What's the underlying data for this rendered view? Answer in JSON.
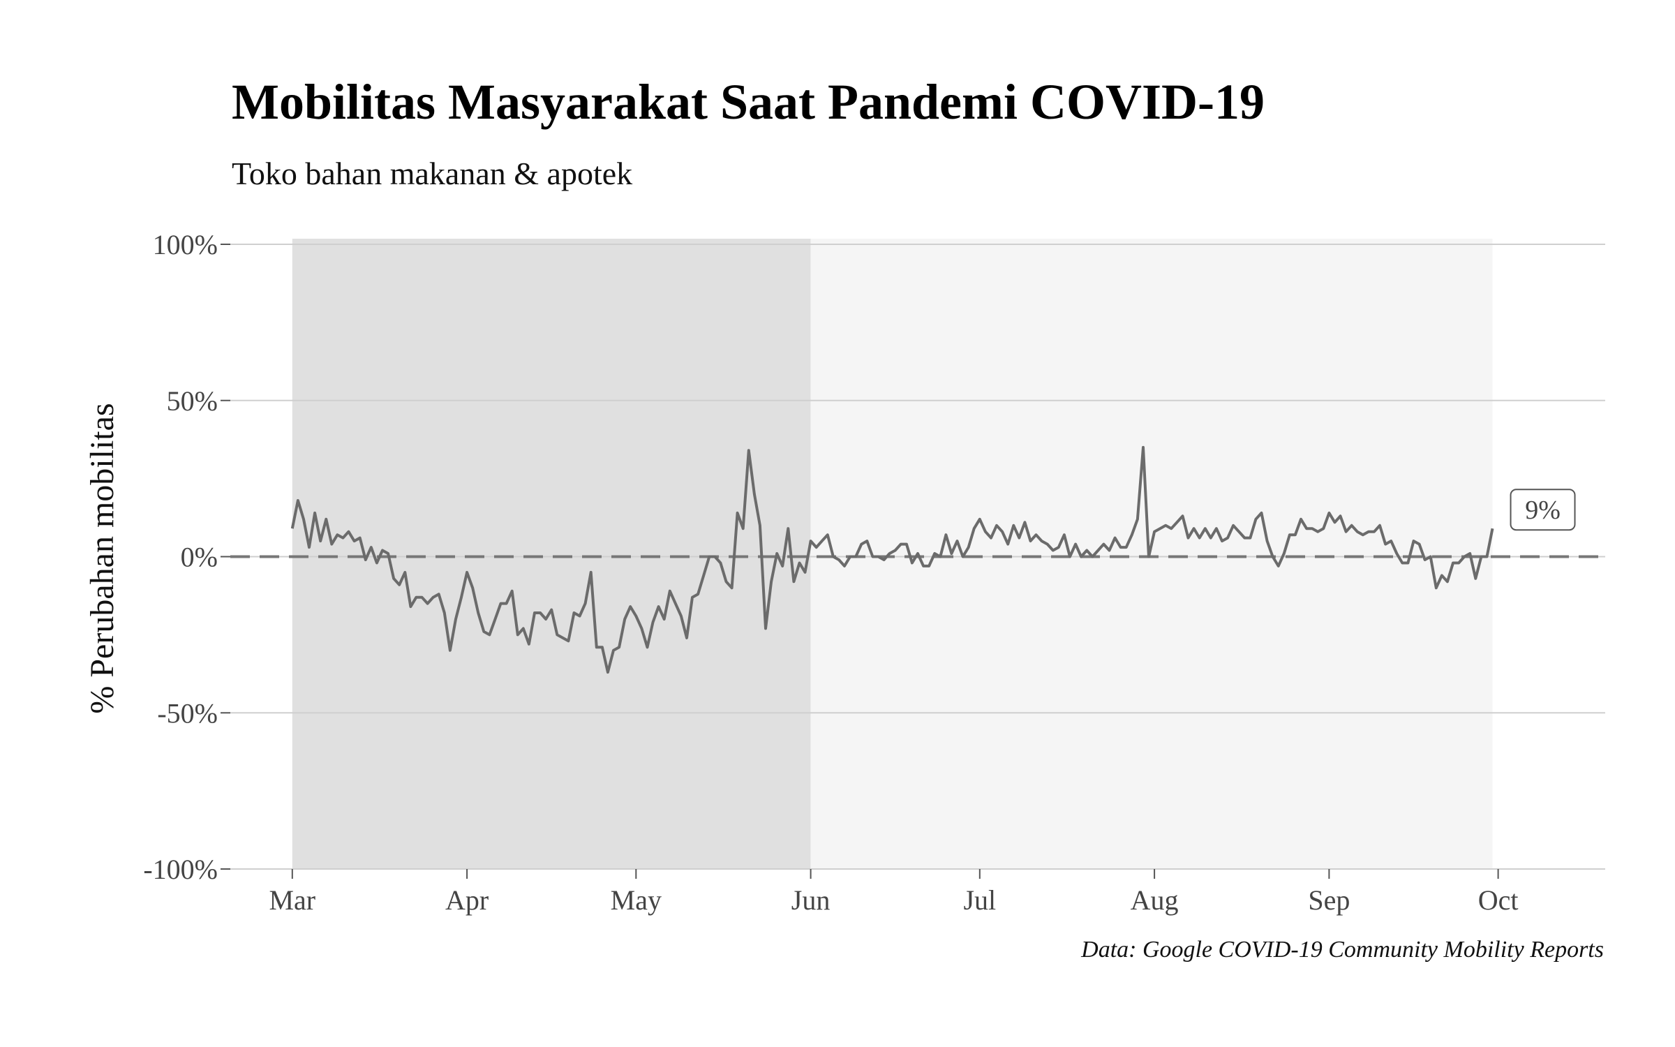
{
  "chart_data": {
    "type": "line",
    "title": "Mobilitas Masyarakat Saat Pandemi COVID-19",
    "subtitle": "Toko bahan makanan & apotek",
    "ylabel": "% Perubahan mobilitas",
    "xlabel": "",
    "caption": "Data: Google COVID-19 Community Mobility Reports",
    "ylim": [
      -100,
      100
    ],
    "yticks": [
      100,
      50,
      0,
      -50,
      -100
    ],
    "ytick_labels": [
      "100%",
      "50%",
      "0%",
      "-50%",
      "-100%"
    ],
    "xlim": [
      "2020-02-19",
      "2020-10-20"
    ],
    "xticks": [
      "2020-03-01",
      "2020-04-01",
      "2020-05-01",
      "2020-06-01",
      "2020-07-01",
      "2020-08-01",
      "2020-09-01",
      "2020-10-01"
    ],
    "xtick_labels": [
      "Mar",
      "Apr",
      "May",
      "Jun",
      "Jul",
      "Aug",
      "Sep",
      "Oct"
    ],
    "shaded_periods": [
      {
        "start": "2020-03-01",
        "end": "2020-06-01",
        "color": "#e0e0e0"
      },
      {
        "start": "2020-06-01",
        "end": "2020-09-30",
        "color": "#f5f5f5"
      }
    ],
    "reference_line": {
      "y": 0,
      "style": "dashed",
      "color": "#777777"
    },
    "end_label": "9%",
    "line_color": "#6b6b6b",
    "grid": true,
    "series": [
      {
        "x_start": "2020-03-01",
        "x_step_days": 1,
        "values": [
          9,
          18,
          12,
          3,
          14,
          5,
          12,
          4,
          7,
          6,
          8,
          5,
          6,
          -1,
          3,
          -2,
          2,
          1,
          -7,
          -9,
          -5,
          -16,
          -13,
          -13,
          -15,
          -13,
          -12,
          -18,
          -30,
          -20,
          -13,
          -5,
          -10,
          -18,
          -24,
          -25,
          -20,
          -15,
          -15,
          -11,
          -25,
          -23,
          -28,
          -18,
          -18,
          -20,
          -17,
          -25,
          -26,
          -27,
          -18,
          -19,
          -15,
          -5,
          -29,
          -29,
          -37,
          -30,
          -29,
          -20,
          -16,
          -19,
          -23,
          -29,
          -21,
          -16,
          -20,
          -11,
          -15,
          -19,
          -26,
          -13,
          -12,
          -6,
          0,
          0,
          -2,
          -8,
          -10,
          14,
          9,
          34,
          20,
          10,
          -23,
          -8,
          1,
          -3,
          9,
          -8,
          -2,
          -5,
          5,
          3,
          5,
          7,
          0,
          -1,
          -3,
          0,
          0,
          4,
          5,
          0,
          0,
          -1,
          1,
          2,
          4,
          4,
          -2,
          1,
          -3,
          -3,
          1,
          0,
          7,
          1,
          5,
          0,
          3,
          9,
          12,
          8,
          6,
          10,
          8,
          4,
          10,
          6,
          11,
          5,
          7,
          5,
          4,
          2,
          3,
          7,
          0,
          4,
          0,
          2,
          0,
          2,
          4,
          2,
          6,
          3,
          3,
          7,
          12,
          35,
          0,
          8,
          9,
          10,
          9,
          11,
          13,
          6,
          9,
          6,
          9,
          6,
          9,
          5,
          6,
          10,
          8,
          6,
          6,
          12,
          14,
          5,
          0,
          -3,
          1,
          7,
          7,
          12,
          9,
          9,
          8,
          9,
          14,
          11,
          13,
          8,
          10,
          8,
          7,
          8,
          8,
          10,
          4,
          5,
          1,
          -2,
          -2,
          5,
          4,
          -1,
          0,
          -10,
          -6,
          -8,
          -2,
          -2,
          0,
          1,
          -7,
          0,
          0,
          9
        ]
      }
    ]
  }
}
